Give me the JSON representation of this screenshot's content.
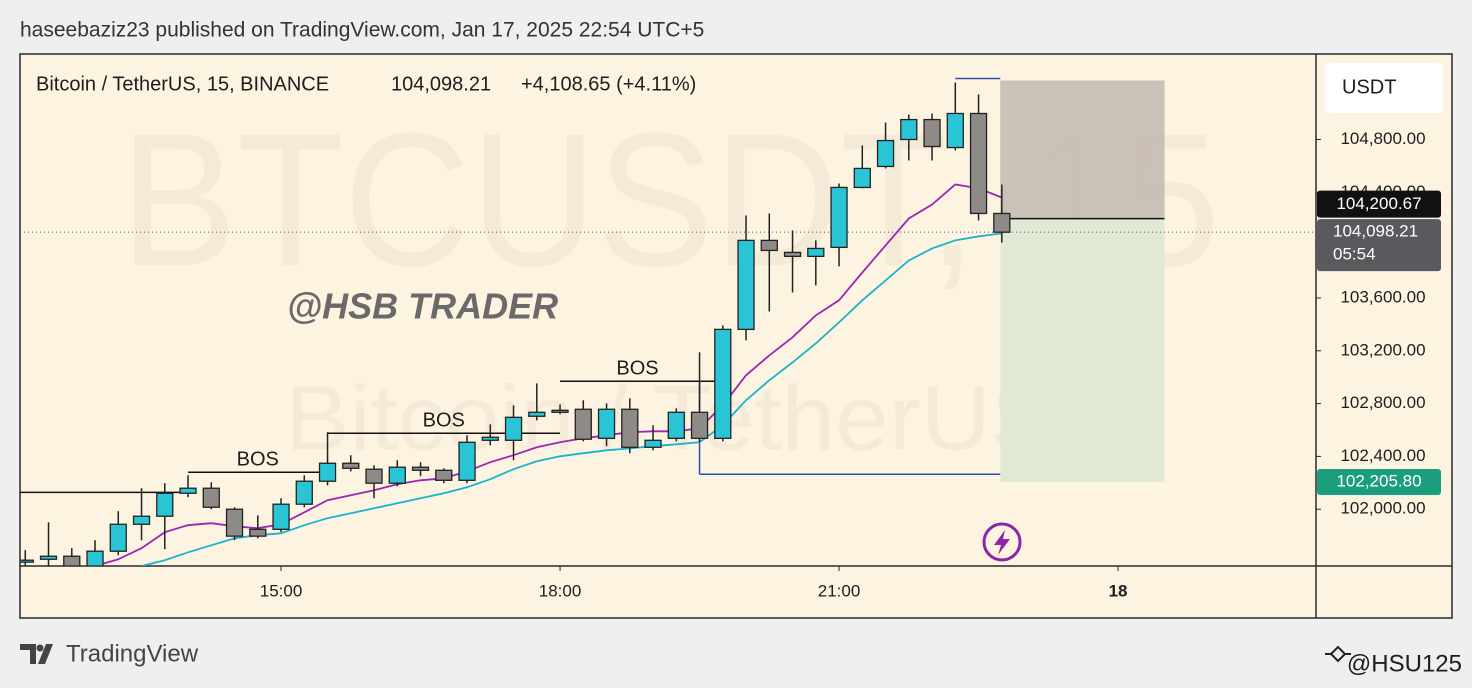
{
  "header": "haseebaziz23 published on TradingView.com, Jan 17, 2025 22:54 UTC+5",
  "chart_data": {
    "type": "candlestick",
    "legend": {
      "symbol": "Bitcoin / TetherUS, 15, BINANCE",
      "price": "104,098.21",
      "change": "+4,108.65 (+4.11%)"
    },
    "watermark": "BTCUSDT, 15",
    "watermark_sub": "Bitcoin / TetherUS",
    "annotation": "@HSB TRADER",
    "currency": "USDT",
    "colors": {
      "up": "#29c5d6",
      "down": "#8e8a88",
      "outline": "#222222"
    },
    "x": [
      735,
      750,
      765,
      780,
      795,
      810,
      825,
      840,
      855,
      870,
      885,
      900,
      915,
      930,
      945,
      960,
      975,
      990,
      1005,
      1020,
      1035,
      1050,
      1065,
      1080,
      1095,
      1110,
      1125,
      1140,
      1155,
      1170,
      1185,
      1200,
      1215,
      1230,
      1245,
      1260,
      1275,
      1290,
      1305,
      1320,
      1335,
      1350,
      1365
    ],
    "open": [
      101599,
      101621,
      101644,
      101570,
      101682,
      101886,
      101947,
      102121,
      102159,
      102000,
      101848,
      101848,
      102038,
      102212,
      102348,
      102303,
      102197,
      102318,
      102295,
      102219,
      102522,
      102522,
      102704,
      102749,
      102757,
      102537,
      102757,
      102469,
      102537,
      102734,
      102537,
      103362,
      104036,
      103945,
      103915,
      103983,
      104437,
      104596,
      104800,
      104951,
      104739,
      104997,
      104240
    ],
    "high": [
      101690,
      101901,
      101705,
      101765,
      101985,
      102159,
      102197,
      102257,
      102204,
      102015,
      101954,
      102083,
      102257,
      102583,
      102409,
      102333,
      102371,
      102356,
      102310,
      102560,
      102643,
      102787,
      102953,
      102794,
      102825,
      102802,
      102840,
      102636,
      102764,
      103188,
      103392,
      104225,
      104240,
      104111,
      104036,
      104467,
      104755,
      104929,
      104989,
      104997,
      105231,
      105141,
      104459
    ],
    "low": [
      101570,
      101570,
      101550,
      101550,
      101652,
      101765,
      101697,
      102091,
      102000,
      101765,
      101780,
      101826,
      102015,
      102181,
      102287,
      102083,
      102174,
      102250,
      102197,
      102197,
      102484,
      102371,
      102673,
      102719,
      102514,
      102477,
      102424,
      102446,
      102514,
      102507,
      102514,
      103279,
      103498,
      103642,
      103695,
      103839,
      104430,
      104581,
      104641,
      104641,
      104717,
      104187,
      104020
    ],
    "close": [
      101614,
      101644,
      101570,
      101682,
      101886,
      101947,
      102121,
      102159,
      102015,
      101796,
      101796,
      102038,
      102212,
      102348,
      102310,
      102197,
      102318,
      102295,
      102219,
      102507,
      102545,
      102696,
      102734,
      102734,
      102530,
      102757,
      102469,
      102522,
      102734,
      102537,
      103362,
      104036,
      103960,
      103915,
      103975,
      104437,
      104581,
      104792,
      104951,
      104747,
      104997,
      104240,
      104098.21
    ],
    "lines": [
      {
        "color": "#9c27b0",
        "values": [
          null,
          null,
          null,
          101570,
          101621,
          101705,
          101826,
          101879,
          101894,
          101871,
          101856,
          101886,
          101977,
          102068,
          102106,
          102144,
          102189,
          102219,
          102234,
          102287,
          102356,
          102409,
          102469,
          102507,
          102537,
          102560,
          102583,
          102590,
          102590,
          102613,
          102787,
          103014,
          103165,
          103302,
          103468,
          103582,
          103793,
          103998,
          104202,
          104308,
          104459,
          104430,
          104361
        ]
      },
      {
        "color": "#1ab3c9",
        "values": [
          null,
          null,
          null,
          null,
          null,
          101570,
          101614,
          101674,
          101727,
          101780,
          101803,
          101818,
          101879,
          101932,
          101970,
          102007,
          102045,
          102083,
          102121,
          102166,
          102227,
          102303,
          102363,
          102401,
          102424,
          102446,
          102461,
          102477,
          102492,
          102507,
          102636,
          102825,
          102976,
          103112,
          103256,
          103415,
          103582,
          103733,
          103884,
          103975,
          104036,
          104066,
          104089
        ]
      }
    ],
    "levels": [
      {
        "value": 102128,
        "x": [
          731.6,
          840
        ]
      },
      {
        "value": 102280,
        "x": [
          840,
          930
        ],
        "label": "BOS"
      },
      {
        "value": 102575,
        "x": [
          930,
          1080
        ],
        "label": "BOS"
      },
      {
        "value": 102969,
        "x": [
          1080,
          1180
        ],
        "label": "BOS"
      }
    ],
    "guides": {
      "color": "#2f4fb0",
      "segments": [
        {
          "x": [
            1170,
            1364
          ],
          "y": [
            102265,
            102265
          ]
        },
        {
          "x": [
            1170,
            1170
          ],
          "y": [
            102969,
            102265
          ]
        },
        {
          "x": [
            1335,
            1364
          ],
          "y": [
            105262,
            105262
          ]
        }
      ]
    },
    "position": {
      "x": [
        1364,
        1470
      ],
      "stop": 105247,
      "entry": {
        "value": 104200.67,
        "label": "104,200.67"
      },
      "target": {
        "value": 102205.8,
        "label": "102,205.80"
      },
      "stop_color": "#c7beb6",
      "target_color": "#dfe8d4"
    },
    "last_price": {
      "value": 104098.21,
      "label": "104,098.21",
      "countdown": "05:54"
    },
    "xlim": [
      731.6,
      1567.7
    ],
    "ylim": [
      101570,
      105440
    ],
    "xticks": [
      {
        "value": 900,
        "label": "15:00"
      },
      {
        "value": 1080,
        "label": "18:00"
      },
      {
        "value": 1260,
        "label": "21:00"
      },
      {
        "value": 1440,
        "label": "18"
      }
    ],
    "yticks": [
      {
        "value": 102000,
        "label": "102,000.00"
      },
      {
        "value": 102400,
        "label": "102,400.00"
      },
      {
        "value": 102800,
        "label": "102,800.00"
      },
      {
        "value": 103200,
        "label": "103,200.00"
      },
      {
        "value": 103600,
        "label": "103,600.00"
      },
      {
        "value": 104000,
        "label": "104,000.00"
      },
      {
        "value": 104400,
        "label": "104,400.00"
      },
      {
        "value": 104800,
        "label": "104,800.00"
      }
    ]
  },
  "footer": {
    "brand": "TradingView",
    "handle": "@HSU125"
  }
}
